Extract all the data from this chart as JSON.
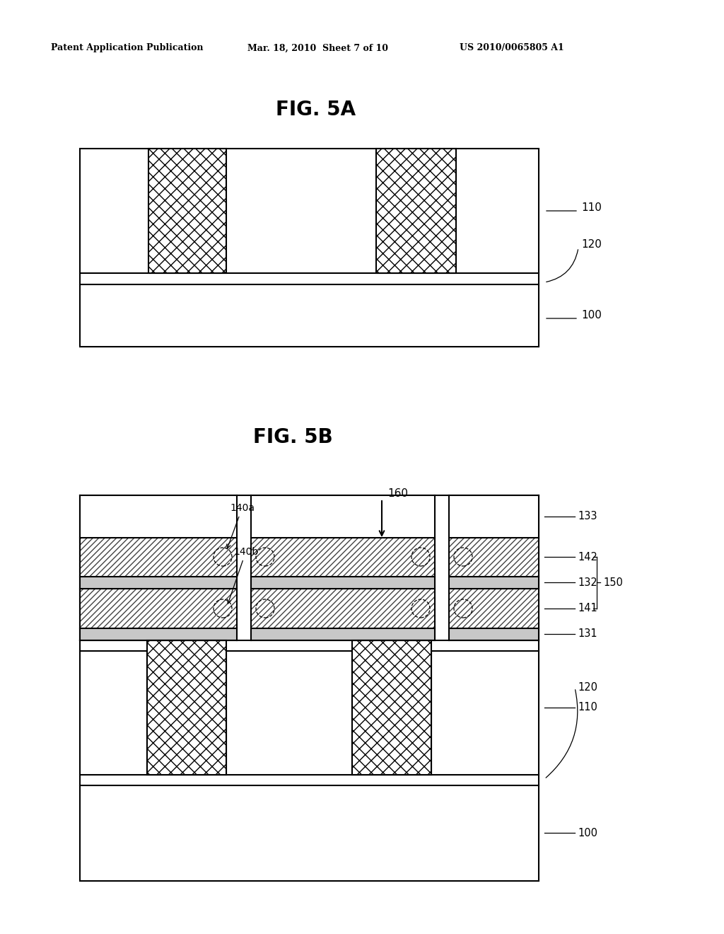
{
  "header_left": "Patent Application Publication",
  "header_mid": "Mar. 18, 2010  Sheet 7 of 10",
  "header_right": "US 2010/0065805 A1",
  "fig5a_title": "FIG. 5A",
  "fig5b_title": "FIG. 5B",
  "bg_color": "#ffffff",
  "line_color": "#000000",
  "gray_thin": "#c8c8c8",
  "gray_substrate": "#d8d8d8"
}
